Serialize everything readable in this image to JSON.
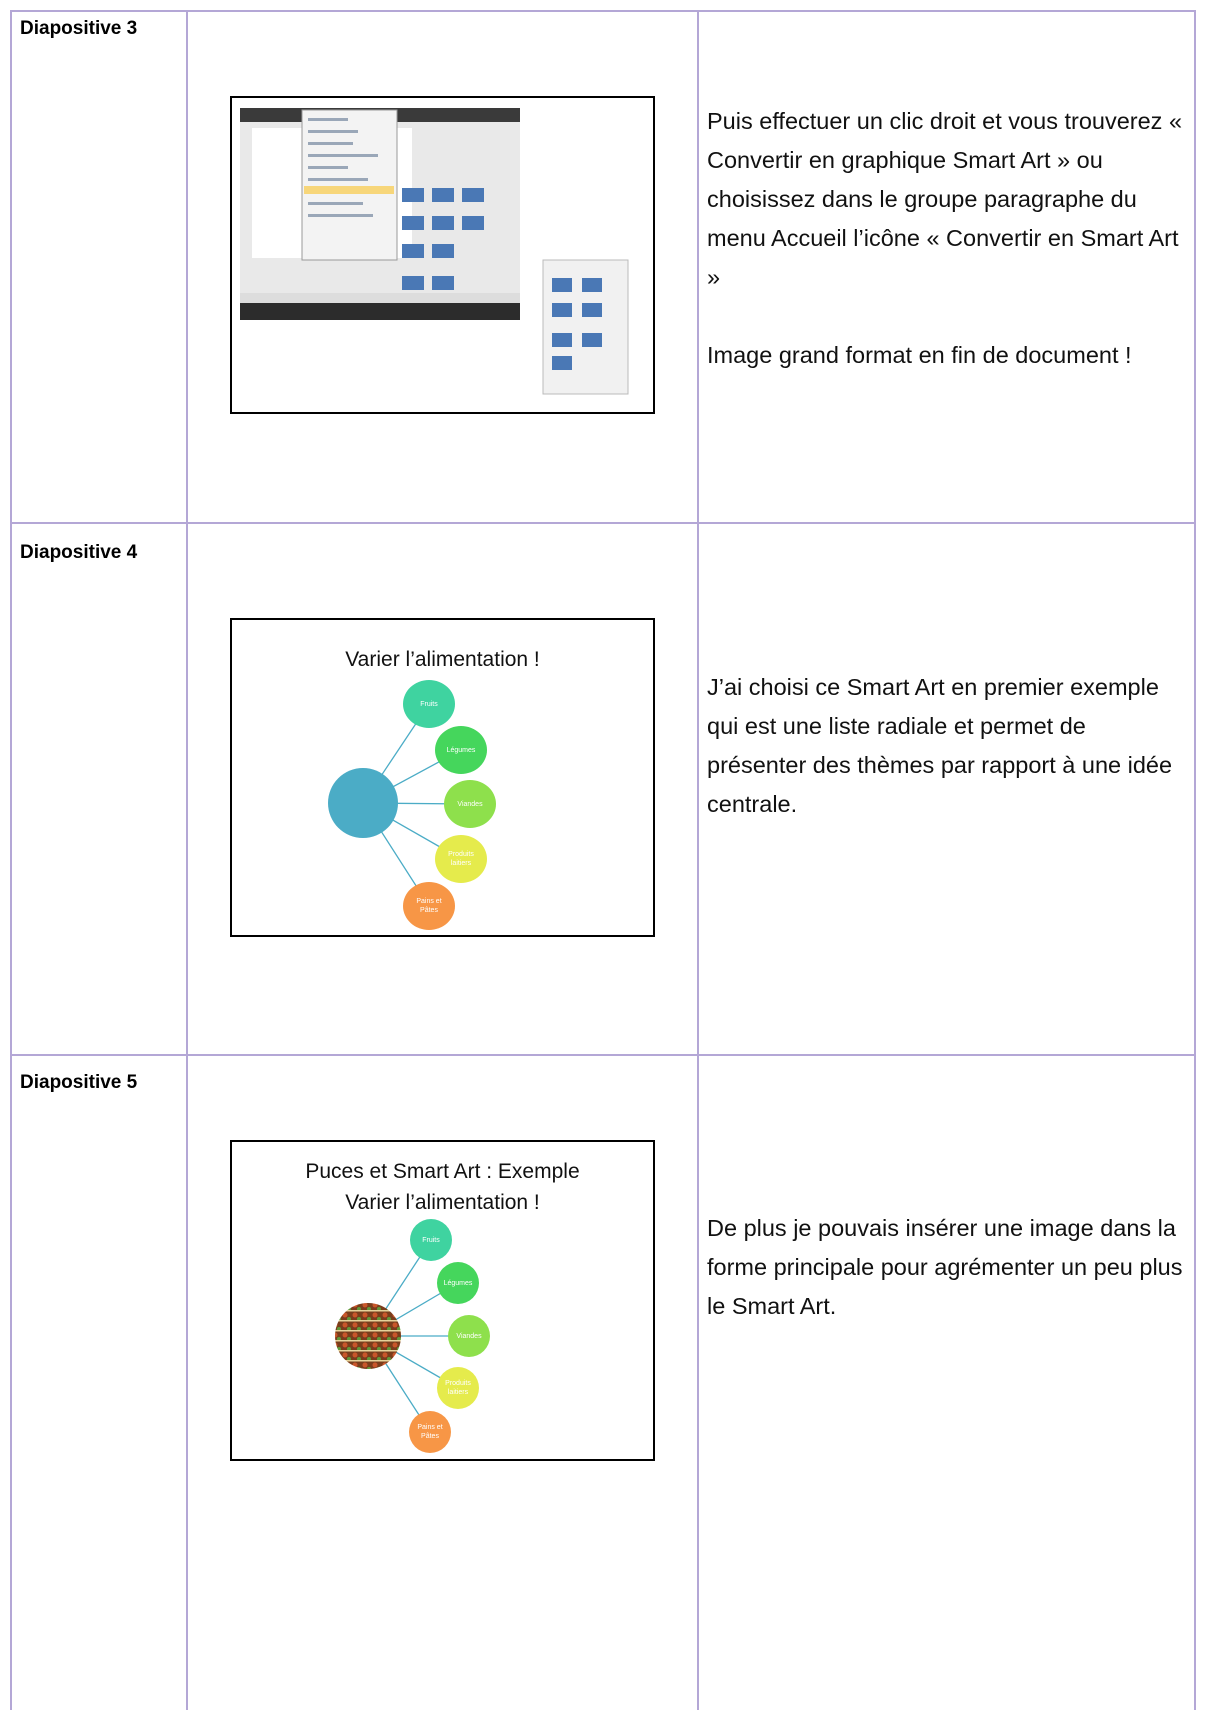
{
  "rows": [
    {
      "label": "Diapositive 3",
      "description": [
        "Puis effectuer un clic droit et vous trouverez « Convertir en graphique Smart Art » ou choisissez dans le groupe paragraphe du menu Accueil l’icône « Convertir en Smart Art »",
        "Image grand format en fin de document !"
      ]
    },
    {
      "label": "Diapositive 4",
      "slide": {
        "titles": [
          "Varier l’alimentation !"
        ],
        "nodes": [
          "Fruits",
          "Légumes",
          "Viandes",
          "Produits laitiers",
          "Pains et Pâtes"
        ]
      },
      "description": [
        "J’ai choisi ce Smart Art en premier exemple qui est une liste radiale et permet de présenter des thèmes par rapport à une idée centrale."
      ]
    },
    {
      "label": "Diapositive 5",
      "slide": {
        "titles": [
          "Puces et Smart Art : Exemple",
          "Varier l’alimentation !"
        ],
        "nodes": [
          "Fruits",
          "Légumes",
          "Viandes",
          "Produits laitiers",
          "Pains et Pâtes"
        ]
      },
      "description": [
        "De plus je pouvais insérer une image dans la forme principale pour agrémenter un peu plus le Smart Art."
      ]
    }
  ]
}
